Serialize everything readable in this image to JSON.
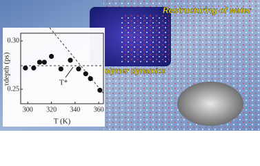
{
  "chart_data": {
    "type": "scatter",
    "x_label": "T (K)",
    "y_label": "τdepth (ps)",
    "annotation": "T*",
    "captions": [
      "Restructuring of water",
      "Polymer dynamics"
    ],
    "x": [
      298,
      305,
      310,
      314,
      320,
      328,
      336,
      343,
      349,
      353,
      361
    ],
    "values": [
      0.272,
      0.272,
      0.278,
      0.278,
      0.284,
      0.271,
      0.28,
      0.271,
      0.266,
      0.261,
      0.249
    ],
    "color": "#111111",
    "xlim": [
      294,
      364
    ],
    "xticks": [
      300,
      320,
      340,
      360
    ],
    "ylim": [
      0.235,
      0.308
    ],
    "yticks": [
      {
        "value": 0.25,
        "label": "0.25"
      },
      {
        "value": 0.3,
        "label": "0.30"
      }
    ]
  }
}
